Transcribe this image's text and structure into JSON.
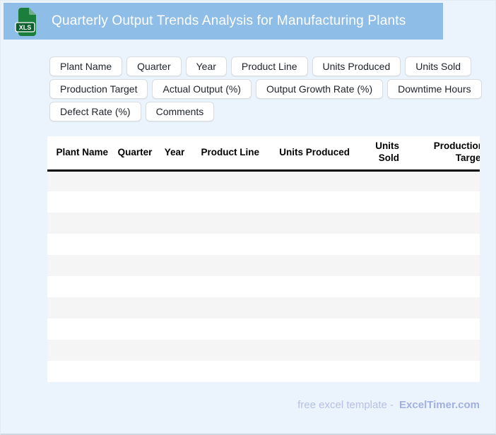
{
  "window": {
    "background_color": "#ebf3fc"
  },
  "header": {
    "title": "Quarterly Output Trends Analysis for Manufacturing Plants",
    "bar_color": "#8ebee8",
    "icon": {
      "label": "XLS",
      "doc_color": "#1b7e3d",
      "fold_color": "#6fae86",
      "badge_color": "#0c5f2d",
      "text_color": "#ffffff"
    }
  },
  "chips": [
    "Plant Name",
    "Quarter",
    "Year",
    "Product Line",
    "Units Produced",
    "Units Sold",
    "Production Target",
    "Actual Output (%)",
    "Output Growth Rate (%)",
    "Downtime Hours",
    "Defect Rate (%)",
    "Comments"
  ],
  "table": {
    "columns": [
      "Plant Name",
      "Quarter",
      "Year",
      "Product Line",
      "Units Produced",
      "Units Sold",
      "Production Target"
    ],
    "empty_row_count": 10,
    "stripe_color": "#f5f5f5",
    "header_rule_color": "#000000"
  },
  "footer": {
    "prefix": "free excel template -",
    "brand": "ExcelTimer.com"
  }
}
